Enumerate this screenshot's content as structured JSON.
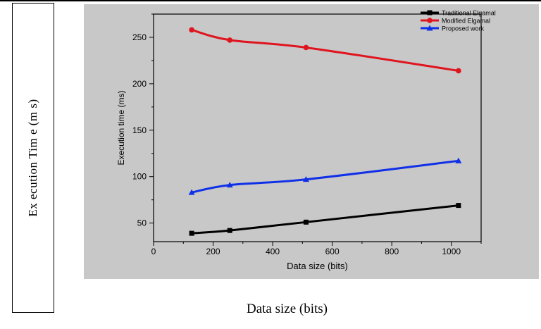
{
  "figure": {
    "outer_ylabel": "Ex ecution Tim e (m s)",
    "outer_xlabel": "Data size (bits)",
    "panel_color": "#c8c8c8"
  },
  "chart_data": {
    "type": "line",
    "xlabel": "Data size (bits)",
    "ylabel": "Execution time (ms)",
    "xlim": [
      0,
      1100
    ],
    "ylim": [
      30,
      275
    ],
    "xticks": [
      0,
      200,
      400,
      600,
      800,
      1000
    ],
    "yticks": [
      50,
      100,
      150,
      200,
      250
    ],
    "grid": false,
    "legend_position": "top-right",
    "x": [
      128,
      256,
      512,
      1024
    ],
    "series": [
      {
        "name": "Traditional Elgamal",
        "color": "#000000",
        "marker": "square",
        "values": [
          39,
          42,
          51,
          69
        ]
      },
      {
        "name": "Modified Elgamal",
        "color": "#e0141e",
        "marker": "circle",
        "values": [
          258,
          247,
          239,
          214
        ]
      },
      {
        "name": "Proposed work",
        "color": "#1030e8",
        "marker": "triangle",
        "values": [
          83,
          91,
          97,
          117
        ]
      }
    ]
  }
}
